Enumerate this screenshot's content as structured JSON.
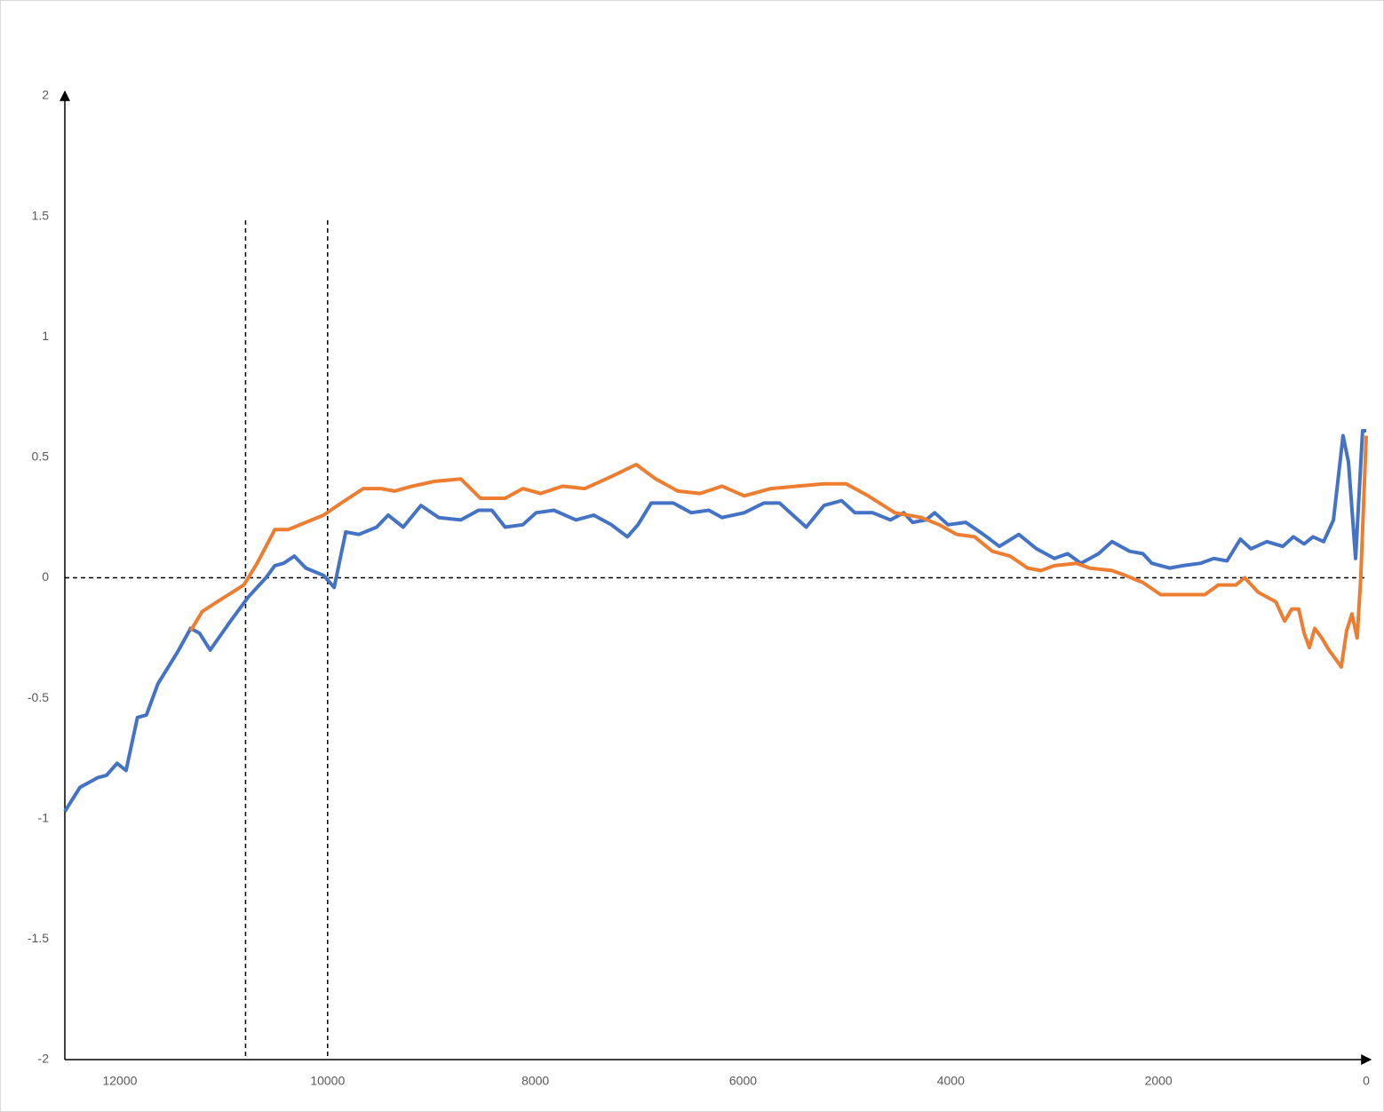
{
  "chart_data": {
    "type": "line",
    "xlim": [
      12530,
      0
    ],
    "ylim": [
      -2,
      2
    ],
    "xticks": [
      12000,
      10000,
      8000,
      6000,
      4000,
      2000,
      0
    ],
    "yticks": [
      2,
      1.5,
      1,
      0.5,
      0,
      -0.5,
      -1,
      -1.5,
      -2
    ],
    "grid": false,
    "reference_x": [
      10790,
      10000
    ],
    "reference_y": [
      0
    ],
    "series": [
      {
        "color": "#4472c4",
        "x": [
          12530,
          12385,
          12214,
          12129,
          12027,
          11941,
          11831,
          11745,
          11634,
          11447,
          11319,
          11233,
          11131,
          10935,
          10764,
          10594,
          10509,
          10423,
          10321,
          10210,
          10039,
          9937,
          9826,
          9698,
          9528,
          9417,
          9272,
          9101,
          8931,
          8717,
          8547,
          8419,
          8291,
          8121,
          7993,
          7822,
          7609,
          7438,
          7268,
          7114,
          7012,
          6884,
          6671,
          6500,
          6330,
          6202,
          5989,
          5801,
          5648,
          5520,
          5392,
          5221,
          5051,
          4923,
          4752,
          4581,
          4453,
          4368,
          4240,
          4155,
          4027,
          3856,
          3686,
          3532,
          3345,
          3174,
          3003,
          2875,
          2747,
          2577,
          2449,
          2278,
          2150,
          2065,
          1894,
          1766,
          1596,
          1468,
          1340,
          1212,
          1110,
          956,
          803,
          701,
          598,
          513,
          410,
          316,
          223,
          171,
          103,
          35,
          0
        ],
        "values": [
          -0.97,
          -0.87,
          -0.83,
          -0.82,
          -0.77,
          -0.8,
          -0.58,
          -0.57,
          -0.44,
          -0.31,
          -0.21,
          -0.23,
          -0.3,
          -0.18,
          -0.08,
          0,
          0.05,
          0.06,
          0.09,
          0.04,
          0.01,
          -0.04,
          0.19,
          0.18,
          0.21,
          0.26,
          0.21,
          0.3,
          0.25,
          0.24,
          0.28,
          0.28,
          0.21,
          0.22,
          0.27,
          0.28,
          0.24,
          0.26,
          0.22,
          0.17,
          0.22,
          0.31,
          0.31,
          0.27,
          0.28,
          0.25,
          0.27,
          0.31,
          0.31,
          0.26,
          0.21,
          0.3,
          0.32,
          0.27,
          0.27,
          0.24,
          0.27,
          0.23,
          0.24,
          0.27,
          0.22,
          0.23,
          0.18,
          0.13,
          0.18,
          0.12,
          0.08,
          0.1,
          0.06,
          0.1,
          0.15,
          0.11,
          0.1,
          0.06,
          0.04,
          0.05,
          0.06,
          0.08,
          0.07,
          0.16,
          0.12,
          0.15,
          0.13,
          0.17,
          0.14,
          0.17,
          0.15,
          0.24,
          0.59,
          0.48,
          0.08,
          0.61,
          0.61
        ]
      },
      {
        "color": "#ed7d31",
        "x": [
          11319,
          11208,
          11063,
          10918,
          10807,
          10679,
          10569,
          10509,
          10381,
          10210,
          10039,
          9869,
          9656,
          9485,
          9357,
          9186,
          8973,
          8717,
          8529,
          8291,
          8121,
          7950,
          7737,
          7524,
          7268,
          7029,
          6841,
          6628,
          6415,
          6202,
          5989,
          5733,
          5477,
          5221,
          5008,
          4795,
          4539,
          4283,
          4112,
          3942,
          3771,
          3600,
          3430,
          3260,
          3132,
          3003,
          2790,
          2662,
          2449,
          2321,
          2150,
          1980,
          1766,
          1553,
          1425,
          1255,
          1169,
          1041,
          871,
          786,
          718,
          650,
          598,
          547,
          496,
          428,
          359,
          291,
          240,
          189,
          138,
          87,
          53,
          0
        ],
        "values": [
          -0.22,
          -0.14,
          -0.1,
          -0.06,
          -0.03,
          0.06,
          0.15,
          0.2,
          0.2,
          0.23,
          0.26,
          0.31,
          0.37,
          0.37,
          0.36,
          0.38,
          0.4,
          0.41,
          0.33,
          0.33,
          0.37,
          0.35,
          0.38,
          0.37,
          0.42,
          0.47,
          0.41,
          0.36,
          0.35,
          0.38,
          0.34,
          0.37,
          0.38,
          0.39,
          0.39,
          0.34,
          0.27,
          0.25,
          0.22,
          0.18,
          0.17,
          0.11,
          0.09,
          0.04,
          0.03,
          0.05,
          0.06,
          0.04,
          0.03,
          0.01,
          -0.02,
          -0.07,
          -0.07,
          -0.07,
          -0.03,
          -0.03,
          0,
          -0.06,
          -0.1,
          -0.18,
          -0.13,
          -0.13,
          -0.23,
          -0.29,
          -0.21,
          -0.25,
          -0.3,
          -0.34,
          -0.37,
          -0.22,
          -0.15,
          -0.25,
          0,
          0.59
        ]
      }
    ]
  }
}
